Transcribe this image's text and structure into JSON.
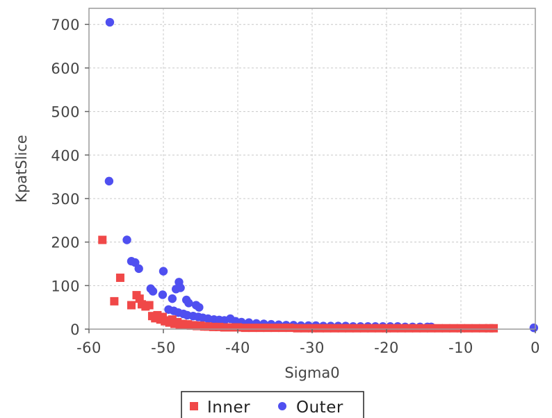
{
  "chart_data": {
    "type": "scatter",
    "title": "",
    "xlabel": "Sigma0",
    "ylabel": "KpatSlice",
    "xlim": [
      -60,
      0
    ],
    "ylim": [
      0,
      700
    ],
    "x_ticks": [
      "-60",
      "-50",
      "-40",
      "-30",
      "-20",
      "-10",
      "0"
    ],
    "y_ticks": [
      "0",
      "100",
      "200",
      "300",
      "400",
      "500",
      "600",
      "700"
    ],
    "grid": true,
    "legend_position": "bottom-center",
    "series": [
      {
        "name": "Inner",
        "marker": "square",
        "color": "#f04848",
        "points": [
          [
            -58.2,
            205
          ],
          [
            -56.6,
            64
          ],
          [
            -55.8,
            118
          ],
          [
            -54.3,
            55
          ],
          [
            -53.6,
            78
          ],
          [
            -53.2,
            70
          ],
          [
            -52.9,
            57
          ],
          [
            -52.4,
            52
          ],
          [
            -51.9,
            55
          ],
          [
            -51.5,
            30
          ],
          [
            -51.1,
            25
          ],
          [
            -50.8,
            32
          ],
          [
            -50.4,
            22
          ],
          [
            -50.1,
            28
          ],
          [
            -49.8,
            18
          ],
          [
            -49.5,
            20
          ],
          [
            -49.2,
            15
          ],
          [
            -48.8,
            22
          ],
          [
            -48.5,
            12
          ],
          [
            -48.1,
            16
          ],
          [
            -47.8,
            10
          ],
          [
            -47.4,
            12
          ],
          [
            -47.0,
            9
          ],
          [
            -46.7,
            11
          ],
          [
            -46.3,
            8
          ],
          [
            -46.0,
            9
          ],
          [
            -45.5,
            7
          ],
          [
            -45.0,
            8
          ],
          [
            -44.5,
            6
          ],
          [
            -44.0,
            6
          ],
          [
            -43.3,
            5
          ],
          [
            -42.5,
            5
          ],
          [
            -41.8,
            4
          ],
          [
            -41.0,
            4
          ],
          [
            -40.0,
            4
          ],
          [
            -39.0,
            3
          ],
          [
            -38.0,
            3
          ],
          [
            -37.0,
            3
          ],
          [
            -36.0,
            3
          ],
          [
            -35.0,
            3
          ],
          [
            -34.0,
            3
          ],
          [
            -33.0,
            3
          ],
          [
            -32.0,
            2
          ],
          [
            -31.0,
            2
          ],
          [
            -30.0,
            2
          ],
          [
            -29.0,
            2
          ],
          [
            -28.0,
            2
          ],
          [
            -27.0,
            2
          ],
          [
            -26.0,
            2
          ],
          [
            -25.0,
            2
          ],
          [
            -24.0,
            2
          ],
          [
            -23.0,
            2
          ],
          [
            -22.0,
            2
          ],
          [
            -21.0,
            2
          ],
          [
            -20.0,
            2
          ],
          [
            -19.0,
            2
          ],
          [
            -18.0,
            2
          ],
          [
            -17.0,
            2
          ],
          [
            -16.0,
            2
          ],
          [
            -15.0,
            2
          ],
          [
            -14.0,
            2
          ],
          [
            -13.0,
            2
          ],
          [
            -12.0,
            2
          ],
          [
            -11.0,
            2
          ],
          [
            -10.0,
            2
          ],
          [
            -9.0,
            2
          ],
          [
            -8.0,
            2
          ],
          [
            -7.0,
            2
          ],
          [
            -6.2,
            2
          ],
          [
            -5.6,
            2
          ]
        ]
      },
      {
        "name": "Outer",
        "marker": "circle",
        "color": "#4f4ff0",
        "points": [
          [
            -57.2,
            705
          ],
          [
            -57.3,
            340
          ],
          [
            -54.9,
            205
          ],
          [
            -54.3,
            156
          ],
          [
            -53.8,
            153
          ],
          [
            -53.3,
            139
          ],
          [
            -50.0,
            133
          ],
          [
            -51.7,
            93
          ],
          [
            -51.4,
            87
          ],
          [
            -50.1,
            79
          ],
          [
            -48.3,
            92
          ],
          [
            -47.9,
            108
          ],
          [
            -47.7,
            95
          ],
          [
            -48.8,
            70
          ],
          [
            -46.9,
            67
          ],
          [
            -46.6,
            60
          ],
          [
            -45.6,
            55
          ],
          [
            -45.2,
            50
          ],
          [
            -49.3,
            45
          ],
          [
            -48.6,
            42
          ],
          [
            -48.0,
            38
          ],
          [
            -47.3,
            35
          ],
          [
            -46.8,
            32
          ],
          [
            -46.0,
            30
          ],
          [
            -45.3,
            28
          ],
          [
            -44.7,
            26
          ],
          [
            -44.0,
            24
          ],
          [
            -43.2,
            22
          ],
          [
            -42.5,
            21
          ],
          [
            -41.8,
            20
          ],
          [
            -41.0,
            24
          ],
          [
            -40.3,
            18
          ],
          [
            -39.5,
            16
          ],
          [
            -38.5,
            15
          ],
          [
            -37.5,
            13
          ],
          [
            -36.5,
            12
          ],
          [
            -35.5,
            11
          ],
          [
            -34.5,
            10
          ],
          [
            -33.5,
            9
          ],
          [
            -32.5,
            9
          ],
          [
            -31.5,
            8
          ],
          [
            -30.5,
            8
          ],
          [
            -29.5,
            8
          ],
          [
            -28.5,
            7
          ],
          [
            -27.5,
            7
          ],
          [
            -26.5,
            7
          ],
          [
            -25.5,
            7
          ],
          [
            -24.5,
            6
          ],
          [
            -23.5,
            6
          ],
          [
            -22.5,
            6
          ],
          [
            -21.5,
            6
          ],
          [
            -20.5,
            6
          ],
          [
            -19.5,
            6
          ],
          [
            -18.5,
            6
          ],
          [
            -17.5,
            5
          ],
          [
            -16.5,
            5
          ],
          [
            -15.5,
            5
          ],
          [
            -14.5,
            5
          ],
          [
            -14.0,
            5
          ],
          [
            -0.2,
            3
          ]
        ]
      }
    ]
  }
}
